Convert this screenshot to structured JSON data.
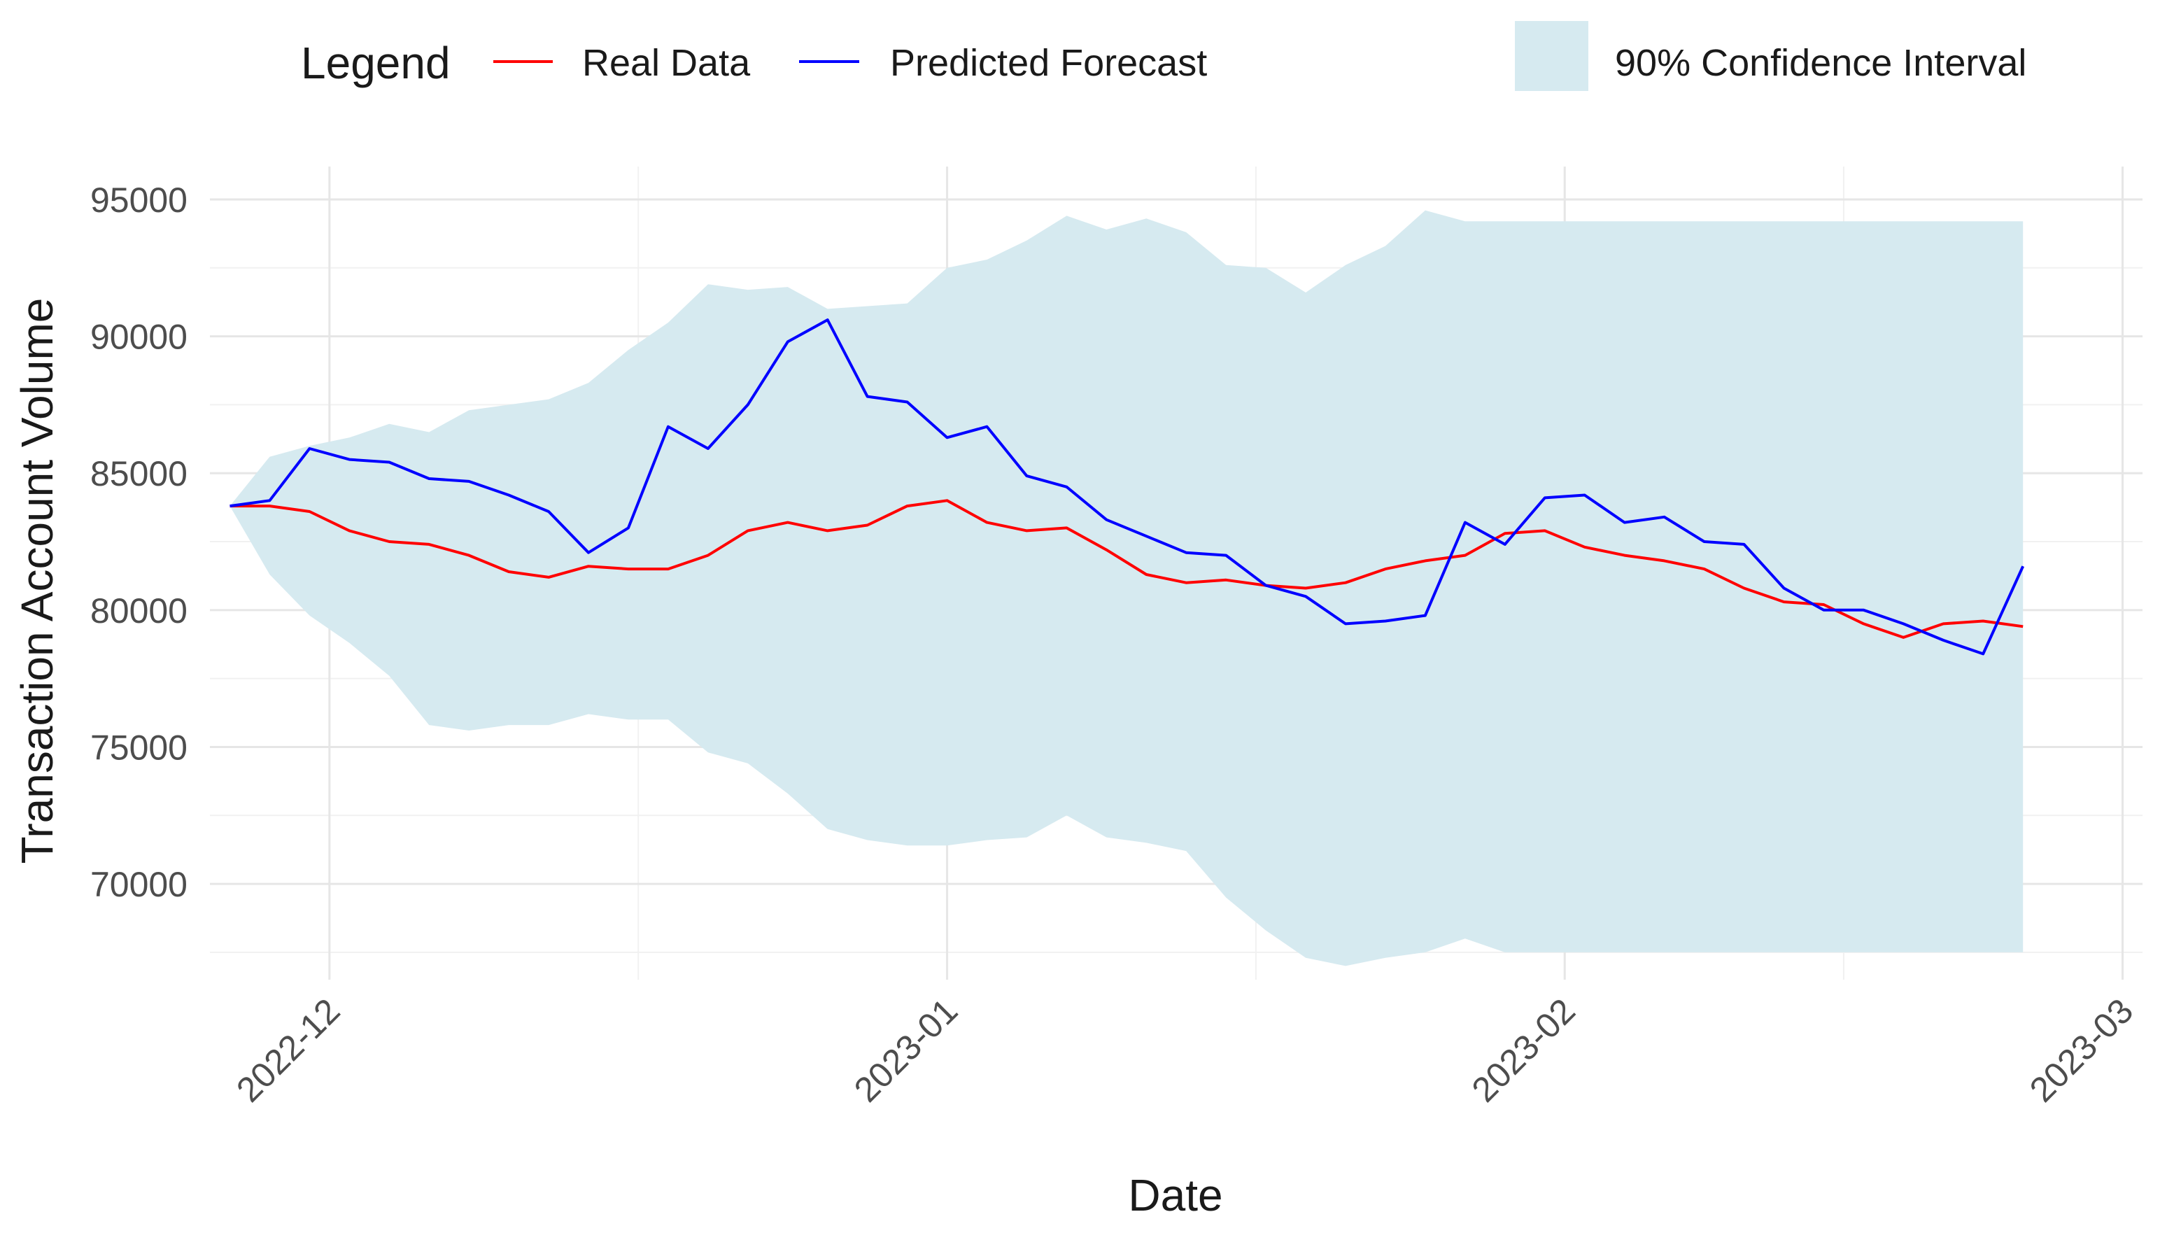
{
  "chart_data": {
    "type": "line",
    "title": "",
    "xlabel": "Date",
    "ylabel": "Transaction Account Volume",
    "ylim": [
      66500,
      96200
    ],
    "xlim": [
      "2022-11-25",
      "2023-03-02"
    ],
    "grid": true,
    "yticks": [
      70000,
      75000,
      80000,
      85000,
      90000,
      95000
    ],
    "ytick_labels": [
      "70000",
      "75000",
      "80000",
      "85000",
      "90000",
      "95000"
    ],
    "xticks": [
      "2022-12-01",
      "2023-01-01",
      "2023-02-01",
      "2023-03-01"
    ],
    "xtick_labels": [
      "2022-12",
      "2023-01",
      "2023-02",
      "2023-03"
    ],
    "legend": {
      "position": "top",
      "title": "Legend",
      "entries": [
        {
          "label": "Real Data",
          "color": "#ff0000",
          "kind": "line"
        },
        {
          "label": "Predicted Forecast",
          "color": "#0000ff",
          "kind": "line"
        },
        {
          "label": "90% Confidence Interval",
          "color": "#d6eaf0",
          "kind": "fill"
        }
      ]
    },
    "x": [
      "2022-11-26",
      "2022-11-28",
      "2022-11-30",
      "2022-12-02",
      "2022-12-04",
      "2022-12-06",
      "2022-12-08",
      "2022-12-10",
      "2022-12-12",
      "2022-12-14",
      "2022-12-16",
      "2022-12-18",
      "2022-12-20",
      "2022-12-22",
      "2022-12-24",
      "2022-12-26",
      "2022-12-28",
      "2022-12-30",
      "2023-01-01",
      "2023-01-03",
      "2023-01-05",
      "2023-01-07",
      "2023-01-09",
      "2023-01-11",
      "2023-01-13",
      "2023-01-15",
      "2023-01-17",
      "2023-01-19",
      "2023-01-21",
      "2023-01-23",
      "2023-01-25",
      "2023-01-27",
      "2023-01-29",
      "2023-01-31",
      "2023-02-02",
      "2023-02-04",
      "2023-02-06",
      "2023-02-08",
      "2023-02-10",
      "2023-02-12",
      "2023-02-14",
      "2023-02-16",
      "2023-02-18",
      "2023-02-20",
      "2023-02-22",
      "2023-02-24"
    ],
    "series": [
      {
        "name": "Real Data",
        "color": "#ff0000",
        "values": [
          83800,
          83800,
          83600,
          82900,
          82500,
          82400,
          82000,
          81400,
          81200,
          81600,
          81500,
          81500,
          82000,
          82900,
          83200,
          82900,
          83100,
          83800,
          84000,
          83200,
          82900,
          83000,
          82200,
          81300,
          81000,
          81100,
          80900,
          80800,
          81000,
          81500,
          81800,
          82000,
          82800,
          82900,
          82300,
          82000,
          81800,
          81500,
          80800,
          80300,
          80200,
          79500,
          79000,
          79500,
          79600,
          79400
        ]
      },
      {
        "name": "Predicted Forecast",
        "color": "#0000ff",
        "values": [
          83800,
          84000,
          85900,
          85500,
          85400,
          84800,
          84700,
          84200,
          83600,
          82100,
          83000,
          86700,
          85900,
          87500,
          89800,
          90600,
          87800,
          87600,
          86300,
          86700,
          84900,
          84500,
          83300,
          82700,
          82100,
          82000,
          80900,
          80500,
          79500,
          79600,
          79800,
          83200,
          82400,
          84100,
          84200,
          83200,
          83400,
          82500,
          82400,
          80800,
          80000,
          80000,
          79500,
          78900,
          78400,
          81600
        ]
      },
      {
        "name": "90% Confidence Interval (lower)",
        "color": "#d6eaf0",
        "values": [
          83800,
          81300,
          79800,
          78800,
          77600,
          75800,
          75600,
          75800,
          75800,
          76200,
          76000,
          76000,
          74800,
          74400,
          73300,
          72000,
          71600,
          71400,
          71400,
          71600,
          71700,
          72500,
          71700,
          71500,
          71200,
          69500,
          68300,
          67300,
          67000,
          67300,
          67500,
          68000,
          67500,
          67500,
          67500,
          67500,
          67500,
          67500,
          67500,
          67500,
          67500,
          67500,
          67500,
          67500,
          67500,
          67500
        ]
      },
      {
        "name": "90% Confidence Interval (upper)",
        "color": "#d6eaf0",
        "values": [
          83800,
          85600,
          86000,
          86300,
          86800,
          86500,
          87300,
          87500,
          87700,
          88300,
          89500,
          90500,
          91900,
          91700,
          91800,
          91000,
          91100,
          91200,
          92500,
          92800,
          93500,
          94400,
          93900,
          94300,
          93800,
          92600,
          92500,
          91600,
          92600,
          93300,
          94600,
          94200,
          94200,
          94200,
          94200,
          94200,
          94200,
          94200,
          94200,
          94200,
          94200,
          94200,
          94200,
          94200,
          94200,
          94200
        ]
      }
    ]
  }
}
